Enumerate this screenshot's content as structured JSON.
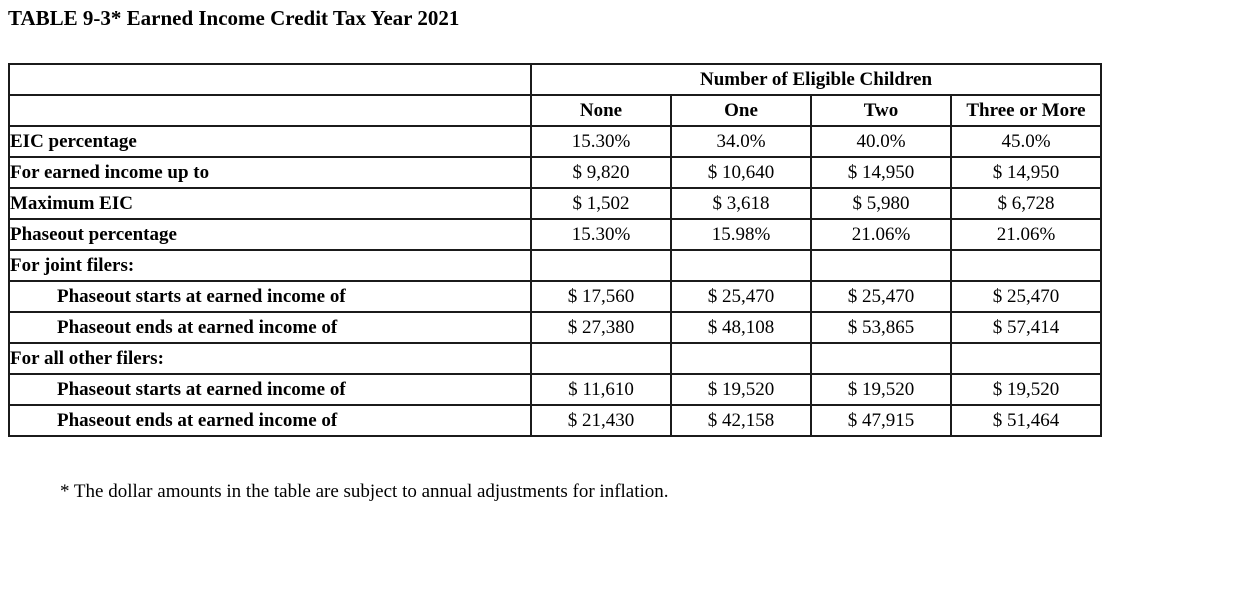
{
  "page": {
    "title": "TABLE 9-3* Earned Income Credit Tax Year 2021",
    "footnote": "* The dollar amounts in the table are subject to annual adjustments for inflation."
  },
  "table": {
    "group_header": "Number of Eligible Children",
    "columns": [
      "None",
      "One",
      "Two",
      "Three or More"
    ],
    "rows": [
      {
        "label": "EIC percentage",
        "values": [
          "15.30%",
          "34.0%",
          "40.0%",
          "45.0%"
        ]
      },
      {
        "label": "For earned income up to",
        "values": [
          "$ 9,820",
          "$ 10,640",
          "$ 14,950",
          "$ 14,950"
        ]
      },
      {
        "label": "Maximum EIC",
        "values": [
          "$ 1,502",
          "$ 3,618",
          "$ 5,980",
          "$ 6,728"
        ]
      },
      {
        "label": "Phaseout percentage",
        "values": [
          "15.30%",
          "15.98%",
          "21.06%",
          "21.06%"
        ]
      },
      {
        "label": "For joint filers:",
        "values": [
          "",
          "",
          "",
          ""
        ]
      },
      {
        "label": "Phaseout starts at earned income of",
        "values": [
          "$ 17,560",
          "$ 25,470",
          "$ 25,470",
          "$ 25,470"
        ]
      },
      {
        "label": "Phaseout ends at earned income of",
        "values": [
          "$ 27,380",
          "$ 48,108",
          "$ 53,865",
          "$ 57,414"
        ]
      },
      {
        "label": "For all other filers:",
        "values": [
          "",
          "",
          "",
          ""
        ]
      },
      {
        "label": "Phaseout starts at earned income of",
        "values": [
          "$ 11,610",
          "$ 19,520",
          "$ 19,520",
          "$ 19,520"
        ]
      },
      {
        "label": "Phaseout ends at earned income of",
        "values": [
          "$ 21,430",
          "$ 42,158",
          "$ 47,915",
          "$ 51,464"
        ]
      }
    ],
    "colors": {
      "border": "#1b1b1b",
      "text": "#000000",
      "background": "#ffffff"
    }
  }
}
